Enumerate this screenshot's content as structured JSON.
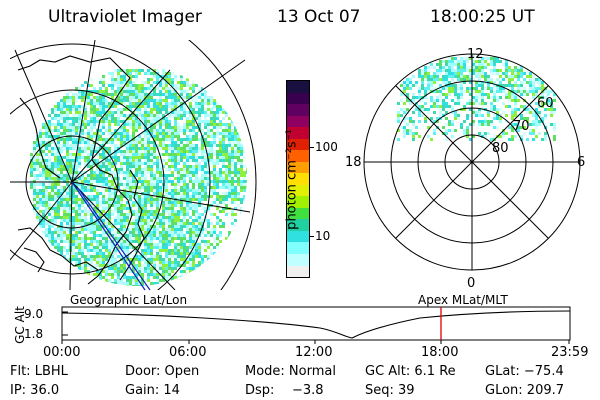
{
  "header": {
    "title": "Ultraviolet Imager",
    "date": "13 Oct 07",
    "time": "18:00:25 UT"
  },
  "colorbar": {
    "unit_label": "photon cm⁻²s⁻¹",
    "ticks": [
      "100",
      "10"
    ],
    "colors": [
      "#1a1040",
      "#3a0050",
      "#600060",
      "#900060",
      "#c00030",
      "#e02000",
      "#ff6000",
      "#ffa000",
      "#ffe000",
      "#e0f000",
      "#a0f000",
      "#40e040",
      "#20d0a0",
      "#30e0e0",
      "#80ffff",
      "#c0ffff",
      "#f0f0f0"
    ]
  },
  "polar_plot": {
    "mlt_labels": [
      "12",
      "18",
      "6",
      "0"
    ],
    "lat_labels": [
      "60",
      "70",
      "80"
    ]
  },
  "timeline": {
    "left_label": "Geographic Lat/Lon",
    "right_label": "Apex MLat/MLT",
    "axis_label": "GC Alt",
    "y_ticks": [
      "9.0",
      "1.8"
    ],
    "x_ticks": [
      "00:00",
      "06:00",
      "12:00",
      "18:00",
      "23:59"
    ],
    "marker_color": "#e00000"
  },
  "status": {
    "flt": "Flt: LBHL",
    "door": "Door: Open",
    "mode": "Mode: Normal",
    "gc_alt": "GC Alt: 6.1 Re",
    "glat": "GLat: −75.4",
    "ip": "IP: 36.0",
    "gain": "Gain: 14",
    "dsp_label": "Dsp:",
    "dsp_value": "−3.8",
    "seq": "Seq: 39",
    "glon": "GLon: 209.7"
  },
  "palette": {
    "auroral": [
      "#30e0e0",
      "#60f0f0",
      "#a0ffff",
      "#40d8b0",
      "#60e060",
      "#90f040",
      "#c0f8f8",
      "#d8ffff"
    ]
  }
}
